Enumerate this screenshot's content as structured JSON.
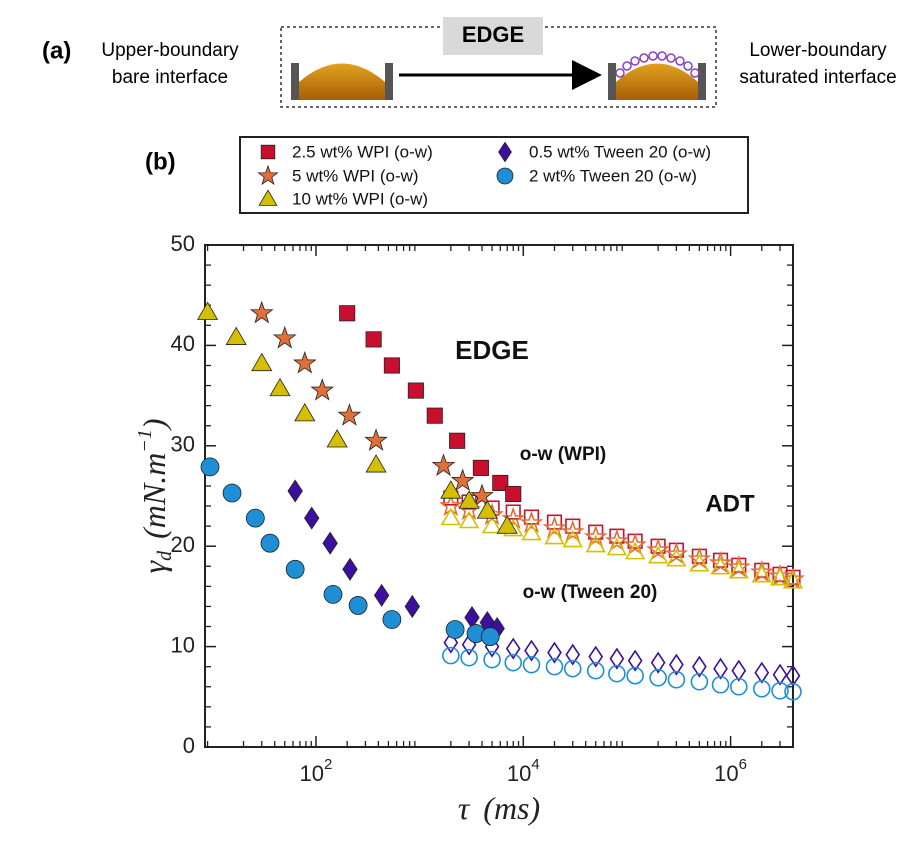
{
  "panel_a": {
    "label": "(a)",
    "left_text": [
      "Upper-boundary",
      "bare interface"
    ],
    "edge_label": "EDGE",
    "right_text": [
      "Lower-boundary",
      "saturated interface"
    ]
  },
  "chart_data": {
    "type": "scatter",
    "panel_label": "(b)",
    "xlabel": [
      "τ",
      "(ms)"
    ],
    "ylabel": [
      "γ",
      "d",
      "(mN.m",
      "−1",
      ")"
    ],
    "log_x": true,
    "xlim": [
      8.5,
      4000000
    ],
    "xticks": [
      {
        "value": 100,
        "label": "10",
        "exponent": "2"
      },
      {
        "value": 10000,
        "label": "10",
        "exponent": "4"
      },
      {
        "value": 1000000,
        "label": "10",
        "exponent": "6"
      }
    ],
    "ylim": [
      0,
      50
    ],
    "yticks": [
      0,
      10,
      20,
      30,
      40,
      50
    ],
    "annotations": [
      "EDGE",
      "o-w (WPI)",
      "ADT",
      "o-w (Tween 20)"
    ],
    "adt_x": [
      2000,
      3000,
      5000,
      8000,
      12000,
      20000,
      30000,
      50000,
      80000,
      120000,
      200000,
      300000,
      500000,
      800000,
      1200000,
      2000000,
      3000000,
      4000000
    ],
    "series": [
      {
        "name": "2.5 wt% WPI (o-w)",
        "color": "#c8102e",
        "marker": "square",
        "x": [
          200,
          360,
          540,
          920,
          1400,
          2300,
          3900,
          6000,
          8000
        ],
        "values": [
          43.2,
          40.6,
          38,
          35.5,
          33,
          30.5,
          27.8,
          26.3,
          25.2
        ],
        "adt_values": [
          24.8,
          24.4,
          23.8,
          23.4,
          22.9,
          22.4,
          22.0,
          21.4,
          21.0,
          20.5,
          20.0,
          19.6,
          19.0,
          18.6,
          18.1,
          17.6,
          17.2,
          16.9
        ]
      },
      {
        "name": "5 wt% WPI (o-w)",
        "color": "#e0703a",
        "marker": "star",
        "x": [
          30,
          50,
          78,
          115,
          210,
          380,
          1700,
          2600,
          4000
        ],
        "values": [
          43.2,
          40.7,
          38.2,
          35.5,
          33,
          30.5,
          28,
          26.5,
          25
        ],
        "adt_values": [
          24.0,
          23.6,
          23.1,
          22.7,
          22.3,
          21.8,
          21.4,
          20.9,
          20.5,
          20.1,
          19.6,
          19.2,
          18.7,
          18.3,
          17.9,
          17.4,
          17.0,
          16.7
        ]
      },
      {
        "name": "10 wt% WPI (o-w)",
        "color": "#d4c000",
        "marker": "triangle",
        "x": [
          9,
          17,
          30,
          45,
          78,
          160,
          380,
          2000,
          3000,
          4500,
          7000
        ],
        "values": [
          43.3,
          40.8,
          38.2,
          35.7,
          33.2,
          30.6,
          28.1,
          25.5,
          24.5,
          23.5,
          22
        ],
        "adt_values": [
          22.8,
          22.5,
          22.0,
          21.7,
          21.3,
          20.9,
          20.6,
          20.1,
          19.8,
          19.4,
          19.0,
          18.7,
          18.2,
          17.9,
          17.5,
          17.1,
          16.8,
          16.5
        ]
      },
      {
        "name": "0.5 wt% Tween 20 (o-w)",
        "color": "#3d0f9e",
        "marker": "diamond",
        "x": [
          63,
          91,
          137,
          213,
          430,
          850,
          3200,
          4500,
          5600
        ],
        "values": [
          25.5,
          22.8,
          20.3,
          17.7,
          15.1,
          14,
          12.9,
          12.4,
          11.8
        ],
        "adt_values": [
          10.4,
          10.2,
          10.0,
          9.8,
          9.6,
          9.4,
          9.2,
          9.0,
          8.8,
          8.6,
          8.4,
          8.2,
          8.0,
          7.8,
          7.6,
          7.4,
          7.2,
          7.1
        ]
      },
      {
        "name": "2 wt% Tween 20 (o-w)",
        "color": "#1e8fd4",
        "marker": "circle",
        "x": [
          9.5,
          15.5,
          26,
          36,
          63,
          146,
          255,
          540,
          2200,
          3500,
          4800
        ],
        "values": [
          27.9,
          25.3,
          22.8,
          20.3,
          17.7,
          15.2,
          14.1,
          12.7,
          11.7,
          11.3,
          11
        ],
        "adt_values": [
          9.1,
          8.9,
          8.7,
          8.4,
          8.2,
          8.0,
          7.8,
          7.6,
          7.3,
          7.1,
          6.9,
          6.7,
          6.5,
          6.2,
          6.0,
          5.8,
          5.6,
          5.5
        ]
      }
    ]
  }
}
